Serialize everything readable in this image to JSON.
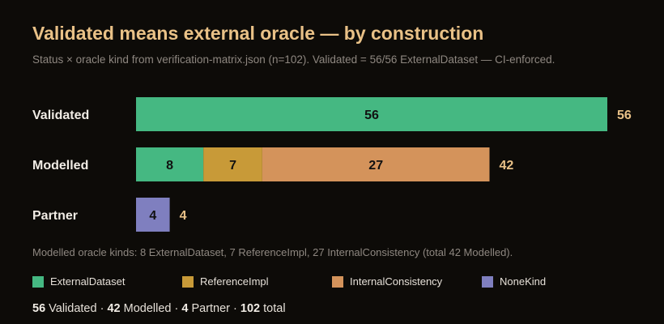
{
  "title": "Validated means external oracle — by construction",
  "subtitle": "Status × oracle kind from verification-matrix.json (n=102). Validated = 56/56 ExternalDataset — CI-enforced.",
  "footnote": "Modelled oracle kinds: 8 ExternalDataset, 7 ReferenceImpl, 27 InternalConsistency (total 42 Modelled).",
  "colors": {
    "ExternalDataset": "#45b882",
    "ReferenceImpl": "#c89a38",
    "InternalConsistency": "#d4935b",
    "NoneKind": "#7f7fbf",
    "total_label": "#e9c187",
    "category_label": "#f1ece5",
    "segment_label": "#111111"
  },
  "legend": [
    {
      "name": "ExternalDataset",
      "color": "#45b882"
    },
    {
      "name": "ReferenceImpl",
      "color": "#c89a38"
    },
    {
      "name": "InternalConsistency",
      "color": "#d4935b"
    },
    {
      "name": "NoneKind",
      "color": "#7f7fbf"
    }
  ],
  "totals": [
    {
      "value": "56",
      "label": " Validated"
    },
    {
      "value": "42",
      "label": " Modelled"
    },
    {
      "value": "4",
      "label": " Partner"
    },
    {
      "value": "102",
      "label": " total"
    }
  ],
  "chart_data": {
    "type": "bar",
    "orientation": "horizontal",
    "stacked": true,
    "title": "Validated means external oracle — by construction",
    "subtitle": "Status × oracle kind from verification-matrix.json (n=102). Validated = 56/56 ExternalDataset — CI-enforced.",
    "categories": [
      "Validated",
      "Modelled",
      "Partner"
    ],
    "series": [
      {
        "name": "ExternalDataset",
        "values": [
          56,
          8,
          0
        ]
      },
      {
        "name": "ReferenceImpl",
        "values": [
          0,
          7,
          0
        ]
      },
      {
        "name": "InternalConsistency",
        "values": [
          0,
          27,
          0
        ]
      },
      {
        "name": "NoneKind",
        "values": [
          0,
          0,
          4
        ]
      }
    ],
    "row_totals": [
      56,
      42,
      4
    ],
    "xlim": [
      0,
      56
    ],
    "grid": false,
    "legend_position": "bottom"
  }
}
